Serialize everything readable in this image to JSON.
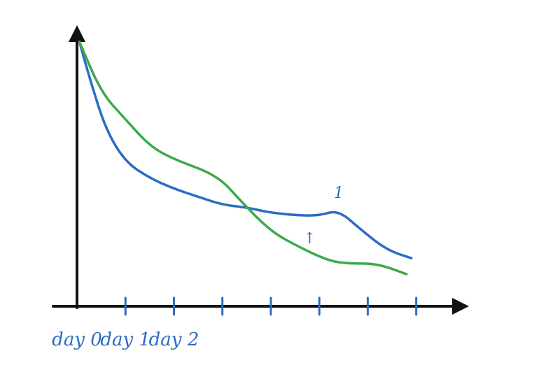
{
  "chart_data": {
    "type": "line",
    "title": "",
    "xlabel": "",
    "ylabel": "",
    "tick_labels": [
      {
        "x": 0,
        "text": "day 0"
      },
      {
        "x": 1,
        "text": "day 1"
      },
      {
        "x": 2,
        "text": "day 2"
      }
    ],
    "annotations": [
      {
        "text": "1",
        "x": 5.4,
        "y": 0.39
      },
      {
        "text": "↑",
        "x": 4.8,
        "y": 0.22
      }
    ],
    "xlim": [
      0,
      7.8
    ],
    "ylim": [
      0,
      1
    ],
    "ticks": [
      1,
      2,
      3,
      4,
      5,
      6,
      7
    ],
    "series": [
      {
        "color": "#2b6cc4",
        "x": [
          0.05,
          0.3,
          0.6,
          1.0,
          1.5,
          2.0,
          2.5,
          3.0,
          3.5,
          4.0,
          4.6,
          5.0,
          5.4,
          5.9,
          6.4,
          6.9
        ],
        "y": [
          0.99,
          0.83,
          0.66,
          0.54,
          0.48,
          0.44,
          0.41,
          0.38,
          0.37,
          0.35,
          0.34,
          0.34,
          0.36,
          0.28,
          0.21,
          0.18
        ]
      },
      {
        "color": "#3caa4a",
        "x": [
          0.05,
          0.5,
          1.0,
          1.5,
          2.0,
          2.9,
          3.4,
          4.0,
          4.6,
          5.2,
          5.6,
          6.2,
          6.8
        ],
        "y": [
          0.99,
          0.8,
          0.7,
          0.6,
          0.55,
          0.49,
          0.39,
          0.28,
          0.22,
          0.17,
          0.16,
          0.16,
          0.12
        ]
      }
    ]
  }
}
